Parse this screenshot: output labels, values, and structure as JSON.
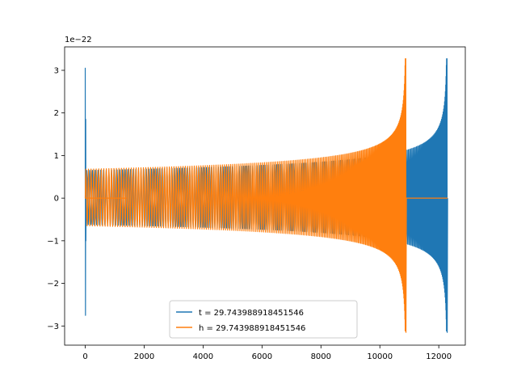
{
  "chart_data": {
    "type": "line",
    "title": "",
    "xlabel": "",
    "ylabel": "",
    "offset_label": "1e−22",
    "xlim": [
      -700,
      12900
    ],
    "ylim": [
      -3.45,
      3.55
    ],
    "x_ticks": [
      0,
      2000,
      4000,
      6000,
      8000,
      10000,
      12000
    ],
    "x_tick_labels": [
      "0",
      "2000",
      "4000",
      "6000",
      "8000",
      "10000",
      "12000"
    ],
    "y_ticks": [
      -3,
      -2,
      -1,
      0,
      1,
      2,
      3
    ],
    "y_tick_labels": [
      "−3",
      "−2",
      "−1",
      "0",
      "1",
      "2",
      "3"
    ],
    "grid": false,
    "legend_position": "lower-center",
    "series": [
      {
        "name": "t = 29.743988918451546",
        "color": "#1f77b4",
        "shape": {
          "spike_x": 0,
          "spike_max": 3.05,
          "spike_min": -2.75,
          "base_amplitude": 0.65,
          "start_x": 0,
          "merger_x": 12280,
          "peak_max": 3.27,
          "peak_min": -3.15,
          "ringdown_end_x": 12300
        }
      },
      {
        "name": "h = 29.743988918451546",
        "color": "#ff7f0e",
        "shape": {
          "zero_segment": [
            0,
            1400
          ],
          "base_amplitude": 0.68,
          "start_x": 0,
          "merger_x": 10880,
          "peak_max": 3.27,
          "peak_min": -3.15,
          "flat_after": [
            10900,
            12300
          ]
        }
      }
    ]
  }
}
